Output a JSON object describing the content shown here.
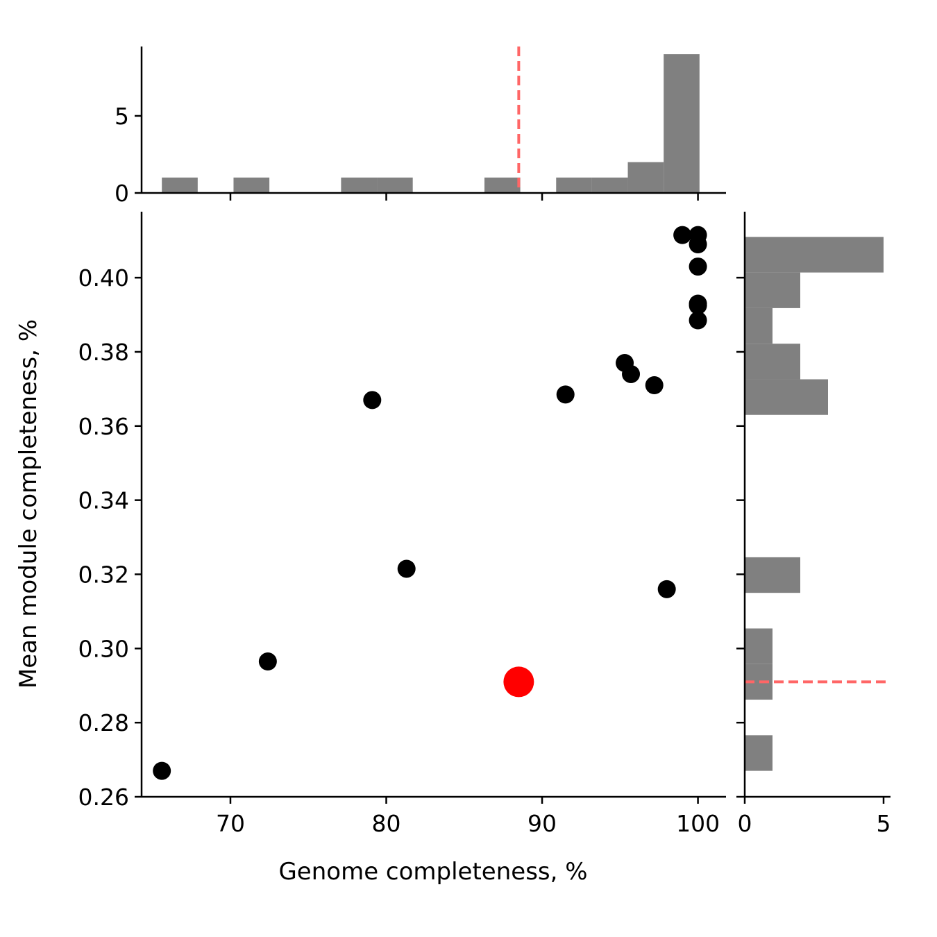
{
  "chart_data": {
    "type": "scatter",
    "xlabel": "Genome completeness, %",
    "ylabel": "Mean module completeness, %",
    "xlim": [
      64.3,
      101.8
    ],
    "ylim": [
      0.26,
      0.4178
    ],
    "x_ticks": [
      "70",
      "80",
      "90",
      "100"
    ],
    "x_tick_values": [
      70,
      80,
      90,
      100
    ],
    "y_ticks": [
      "0.26",
      "0.28",
      "0.30",
      "0.32",
      "0.34",
      "0.36",
      "0.38",
      "0.40"
    ],
    "y_tick_values": [
      0.26,
      0.28,
      0.3,
      0.32,
      0.34,
      0.36,
      0.38,
      0.4
    ],
    "grid": false,
    "colors": {
      "points": "#000000",
      "highlight": "#ff0000",
      "histogram": "#808080",
      "reference_line": "#ff6666"
    },
    "points": [
      {
        "x": 65.6,
        "y": 0.267
      },
      {
        "x": 72.4,
        "y": 0.2965
      },
      {
        "x": 79.1,
        "y": 0.367
      },
      {
        "x": 81.3,
        "y": 0.3215
      },
      {
        "x": 91.5,
        "y": 0.3685
      },
      {
        "x": 95.3,
        "y": 0.377
      },
      {
        "x": 95.7,
        "y": 0.374
      },
      {
        "x": 97.2,
        "y": 0.371
      },
      {
        "x": 98.0,
        "y": 0.316
      },
      {
        "x": 99.0,
        "y": 0.4115
      },
      {
        "x": 100.0,
        "y": 0.4115
      },
      {
        "x": 100.0,
        "y": 0.409
      },
      {
        "x": 100.0,
        "y": 0.403
      },
      {
        "x": 100.0,
        "y": 0.393
      },
      {
        "x": 100.0,
        "y": 0.3925
      },
      {
        "x": 100.0,
        "y": 0.3885
      }
    ],
    "highlight_point": {
      "x": 88.5,
      "y": 0.291
    },
    "top_histogram": {
      "bin_start": 65.6,
      "bin_width": 2.3,
      "counts": [
        1,
        0,
        1,
        0,
        0,
        1,
        1,
        0,
        0,
        1,
        0,
        1,
        1,
        2,
        9
      ],
      "y_ticks": [
        "0",
        "5"
      ],
      "y_tick_values": [
        0,
        5
      ],
      "ylim": [
        0,
        9.5
      ],
      "reference_x": 88.5
    },
    "right_histogram": {
      "bin_start": 0.267,
      "bin_width": 0.0096,
      "counts": [
        1,
        0,
        1,
        1,
        0,
        2,
        0,
        0,
        0,
        0,
        3,
        2,
        1,
        2,
        5
      ],
      "x_ticks": [
        "0",
        "5"
      ],
      "x_tick_values": [
        0,
        5
      ],
      "xlim": [
        0,
        5.25
      ],
      "reference_y": 0.291
    }
  }
}
